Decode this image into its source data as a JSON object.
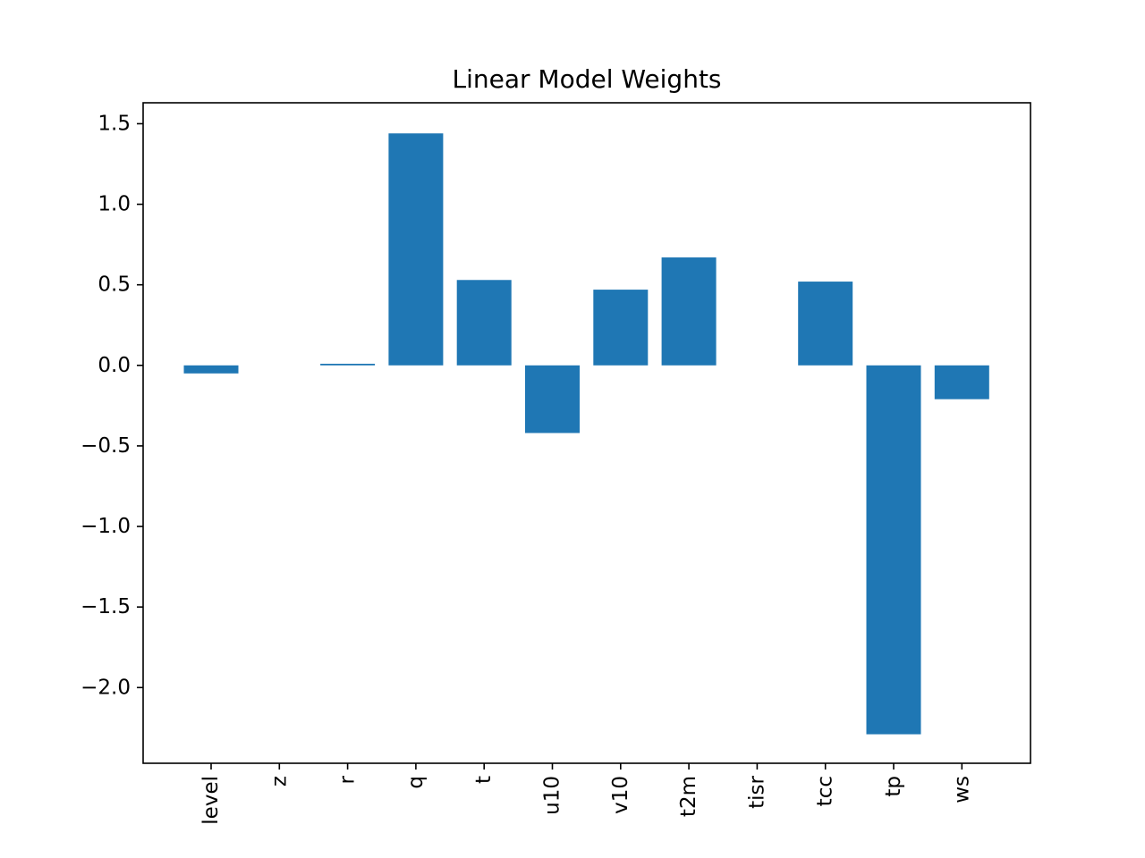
{
  "chart_data": {
    "type": "bar",
    "title": "Linear Model Weights",
    "xlabel": "",
    "ylabel": "",
    "categories": [
      "level",
      "z",
      "r",
      "q",
      "t",
      "u10",
      "v10",
      "t2m",
      "tisr",
      "tcc",
      "tp",
      "ws"
    ],
    "values": [
      -0.05,
      0.0,
      0.01,
      1.44,
      0.53,
      -0.42,
      0.47,
      0.67,
      0.0,
      0.52,
      -2.29,
      -0.21
    ],
    "ylim": [
      -2.47,
      1.63
    ],
    "yticks": [
      1.5,
      1.0,
      0.5,
      0.0,
      -0.5,
      -1.0,
      -1.5,
      -2.0
    ],
    "ytick_labels": [
      "1.5",
      "1.0",
      "0.5",
      "0.0",
      "−0.5",
      "−1.0",
      "−1.5",
      "−2.0"
    ],
    "grid": false,
    "bar_color": "#1f77b4",
    "x_tick_rotation": 90
  }
}
